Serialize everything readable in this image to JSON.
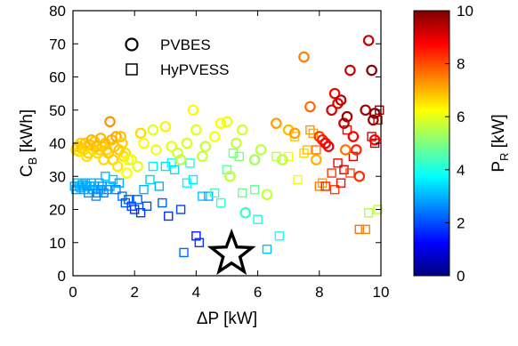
{
  "chart_data": {
    "type": "scatter",
    "xlabel": "ΔP [kW]",
    "ylabel_main": "C",
    "ylabel_sub": "B",
    "ylabel_unit": " [kWh]",
    "xlim": [
      0,
      10
    ],
    "ylim": [
      0,
      80
    ],
    "xticks": [
      "0",
      "2",
      "4",
      "6",
      "8",
      "10"
    ],
    "yticks": [
      "0",
      "10",
      "20",
      "30",
      "40",
      "50",
      "60",
      "70",
      "80"
    ],
    "grid": false,
    "legend": "top-left",
    "colorbar": {
      "label_main": "P",
      "label_sub": "R",
      "label_unit": " [kW]",
      "range": [
        0,
        10
      ],
      "ticks": [
        "0",
        "2",
        "4",
        "6",
        "8",
        "10"
      ],
      "colormap": "jet"
    },
    "series": [
      {
        "name": "PVBES",
        "marker": "circle",
        "points": [
          [
            0.1,
            38,
            6.5
          ],
          [
            0.15,
            39,
            6.8
          ],
          [
            0.2,
            37.5,
            6.6
          ],
          [
            0.25,
            40,
            6.7
          ],
          [
            0.3,
            38.5,
            6.9
          ],
          [
            0.35,
            38,
            6.6
          ],
          [
            0.4,
            40,
            6.8
          ],
          [
            0.45,
            36,
            6.5
          ],
          [
            0.5,
            37,
            6.7
          ],
          [
            0.55,
            39.5,
            6.9
          ],
          [
            0.6,
            41,
            7.0
          ],
          [
            0.65,
            38,
            6.6
          ],
          [
            0.7,
            40.5,
            6.8
          ],
          [
            0.75,
            39,
            6.9
          ],
          [
            0.8,
            37,
            6.6
          ],
          [
            0.85,
            38,
            6.7
          ],
          [
            0.9,
            41.5,
            7.0
          ],
          [
            0.95,
            39,
            6.8
          ],
          [
            1.0,
            35,
            6.6
          ],
          [
            1.05,
            40,
            6.9
          ],
          [
            1.1,
            38,
            6.7
          ],
          [
            1.15,
            37,
            6.8
          ],
          [
            1.2,
            46.5,
            7.3
          ],
          [
            1.25,
            41,
            7.0
          ],
          [
            1.3,
            35,
            6.7
          ],
          [
            1.35,
            39,
            6.8
          ],
          [
            1.4,
            42,
            7.1
          ],
          [
            1.45,
            33,
            6.5
          ],
          [
            1.5,
            38,
            6.8
          ],
          [
            1.55,
            42,
            6.9
          ],
          [
            1.6,
            40,
            6.7
          ],
          [
            1.65,
            36,
            6.6
          ],
          [
            1.7,
            37,
            6.6
          ],
          [
            1.75,
            31,
            6.2
          ],
          [
            1.8,
            35,
            6.3
          ],
          [
            1.9,
            35,
            6.0
          ],
          [
            2.1,
            33,
            6.0
          ],
          [
            2.2,
            43,
            6.6
          ],
          [
            2.3,
            40,
            6.2
          ],
          [
            2.6,
            44,
            6.0
          ],
          [
            2.7,
            38,
            6.1
          ],
          [
            3.0,
            45,
            6.4
          ],
          [
            3.2,
            39,
            6.0
          ],
          [
            3.4,
            37,
            5.8
          ],
          [
            3.5,
            35,
            5.6
          ],
          [
            3.7,
            40,
            5.9
          ],
          [
            3.9,
            50,
            6.3
          ],
          [
            4.0,
            44,
            6.0
          ],
          [
            4.2,
            36,
            5.7
          ],
          [
            4.3,
            39,
            5.7
          ],
          [
            4.6,
            42,
            6.2
          ],
          [
            4.8,
            46,
            6.3
          ],
          [
            5.0,
            46.5,
            6.1
          ],
          [
            5.1,
            30,
            5.6
          ],
          [
            5.3,
            40,
            5.7
          ],
          [
            5.5,
            44,
            5.8
          ],
          [
            5.6,
            19,
            4.3
          ],
          [
            5.9,
            35,
            5.3
          ],
          [
            6.1,
            38,
            5.6
          ],
          [
            6.3,
            24.5,
            5.7
          ],
          [
            6.6,
            46,
            7.2
          ],
          [
            6.8,
            35,
            5.6
          ],
          [
            7.0,
            44,
            6.9
          ],
          [
            7.2,
            43,
            7.2
          ],
          [
            7.5,
            66,
            7.5
          ],
          [
            7.7,
            51,
            7.7
          ],
          [
            7.9,
            35,
            7.0
          ],
          [
            8.0,
            42,
            8.2
          ],
          [
            8.1,
            41,
            8.5
          ],
          [
            8.2,
            40,
            8.7
          ],
          [
            8.3,
            39,
            8.9
          ],
          [
            8.4,
            50,
            9.1
          ],
          [
            8.5,
            55,
            8.8
          ],
          [
            8.6,
            52,
            9.0
          ],
          [
            8.7,
            53,
            9.4
          ],
          [
            8.8,
            46,
            9.4
          ],
          [
            8.85,
            38,
            7.6
          ],
          [
            8.9,
            48,
            9.7
          ],
          [
            9.0,
            62,
            9.2
          ],
          [
            9.1,
            42,
            8.8
          ],
          [
            9.2,
            38,
            8.4
          ],
          [
            9.3,
            30,
            8.3
          ],
          [
            9.5,
            50,
            9.6
          ],
          [
            9.6,
            71,
            9.3
          ],
          [
            9.7,
            62,
            9.9
          ],
          [
            9.75,
            47,
            9.8
          ],
          [
            9.8,
            41,
            8.8
          ],
          [
            9.8,
            49,
            9.8
          ]
        ]
      },
      {
        "name": "HyPVESS",
        "marker": "square",
        "points": [
          [
            0.05,
            27,
            3.0
          ],
          [
            0.1,
            26,
            2.9
          ],
          [
            0.15,
            28,
            3.1
          ],
          [
            0.2,
            27,
            2.9
          ],
          [
            0.25,
            26.5,
            3.0
          ],
          [
            0.3,
            27.5,
            2.8
          ],
          [
            0.35,
            26,
            2.9
          ],
          [
            0.4,
            28,
            3.0
          ],
          [
            0.45,
            27,
            2.8
          ],
          [
            0.5,
            25,
            2.7
          ],
          [
            0.55,
            27,
            2.9
          ],
          [
            0.6,
            28,
            3.0
          ],
          [
            0.65,
            26,
            2.8
          ],
          [
            0.7,
            27,
            2.9
          ],
          [
            0.75,
            24,
            2.7
          ],
          [
            0.8,
            25,
            2.6
          ],
          [
            0.85,
            28,
            3.0
          ],
          [
            0.9,
            26,
            2.8
          ],
          [
            0.95,
            27,
            2.7
          ],
          [
            1.0,
            25,
            2.5
          ],
          [
            1.05,
            30,
            3.1
          ],
          [
            1.1,
            26,
            2.7
          ],
          [
            1.2,
            27,
            2.8
          ],
          [
            1.3,
            29,
            3.2
          ],
          [
            1.4,
            26,
            2.6
          ],
          [
            1.5,
            28,
            2.9
          ],
          [
            1.6,
            24,
            2.4
          ],
          [
            1.7,
            22,
            2.1
          ],
          [
            1.8,
            23,
            2.2
          ],
          [
            1.9,
            21,
            1.9
          ],
          [
            2.0,
            20,
            1.8
          ],
          [
            2.1,
            23,
            2.2
          ],
          [
            2.2,
            19,
            1.8
          ],
          [
            2.3,
            26,
            3.0
          ],
          [
            2.4,
            21,
            2.0
          ],
          [
            2.5,
            29,
            3.3
          ],
          [
            2.6,
            33,
            3.6
          ],
          [
            2.8,
            27,
            3.0
          ],
          [
            2.9,
            22,
            2.2
          ],
          [
            3.0,
            33,
            3.5
          ],
          [
            3.1,
            18,
            1.7
          ],
          [
            3.2,
            34,
            3.8
          ],
          [
            3.3,
            32,
            3.5
          ],
          [
            3.5,
            20,
            1.9
          ],
          [
            3.6,
            7,
            2.3
          ],
          [
            3.7,
            28,
            3.7
          ],
          [
            3.8,
            34,
            4.0
          ],
          [
            3.9,
            29,
            3.6
          ],
          [
            4.0,
            12,
            1.5
          ],
          [
            4.1,
            10,
            1.8
          ],
          [
            4.2,
            24,
            3.2
          ],
          [
            4.4,
            24,
            3.0
          ],
          [
            4.6,
            25,
            4.5
          ],
          [
            4.8,
            22,
            4.3
          ],
          [
            5.0,
            32,
            4.7
          ],
          [
            5.2,
            37,
            4.9
          ],
          [
            5.4,
            36,
            5.0
          ],
          [
            5.5,
            25,
            4.8
          ],
          [
            5.9,
            26,
            4.7
          ],
          [
            6.0,
            17,
            4.0
          ],
          [
            6.3,
            8,
            3.2
          ],
          [
            6.6,
            36,
            5.6
          ],
          [
            6.7,
            12,
            4.0
          ],
          [
            7.0,
            36,
            6.2
          ],
          [
            7.2,
            42,
            6.8
          ],
          [
            7.3,
            29,
            6.1
          ],
          [
            7.5,
            37,
            6.6
          ],
          [
            7.6,
            38,
            6.9
          ],
          [
            7.7,
            44,
            7.3
          ],
          [
            7.8,
            43,
            7.1
          ],
          [
            7.9,
            38,
            7.6
          ],
          [
            8.0,
            27,
            7.5
          ],
          [
            8.1,
            28,
            7.2
          ],
          [
            8.2,
            27,
            8.5
          ],
          [
            8.4,
            31,
            8.2
          ],
          [
            8.5,
            26,
            8.1
          ],
          [
            8.6,
            34,
            8.9
          ],
          [
            8.7,
            28,
            8.7
          ],
          [
            8.8,
            32,
            9.0
          ],
          [
            8.9,
            44,
            8.8
          ],
          [
            9.0,
            31,
            8.0
          ],
          [
            9.1,
            36,
            9.0
          ],
          [
            9.3,
            14,
            7.6
          ],
          [
            9.5,
            14,
            7.5
          ],
          [
            9.6,
            19,
            5.5
          ],
          [
            9.7,
            42,
            9.2
          ],
          [
            9.8,
            40,
            9.5
          ],
          [
            9.9,
            47,
            9.1
          ],
          [
            9.9,
            20,
            5.6
          ],
          [
            9.95,
            50,
            9.7
          ]
        ]
      }
    ],
    "highlight": {
      "marker": "star",
      "x": 5.15,
      "y": 6.5,
      "color": "#000000"
    }
  }
}
